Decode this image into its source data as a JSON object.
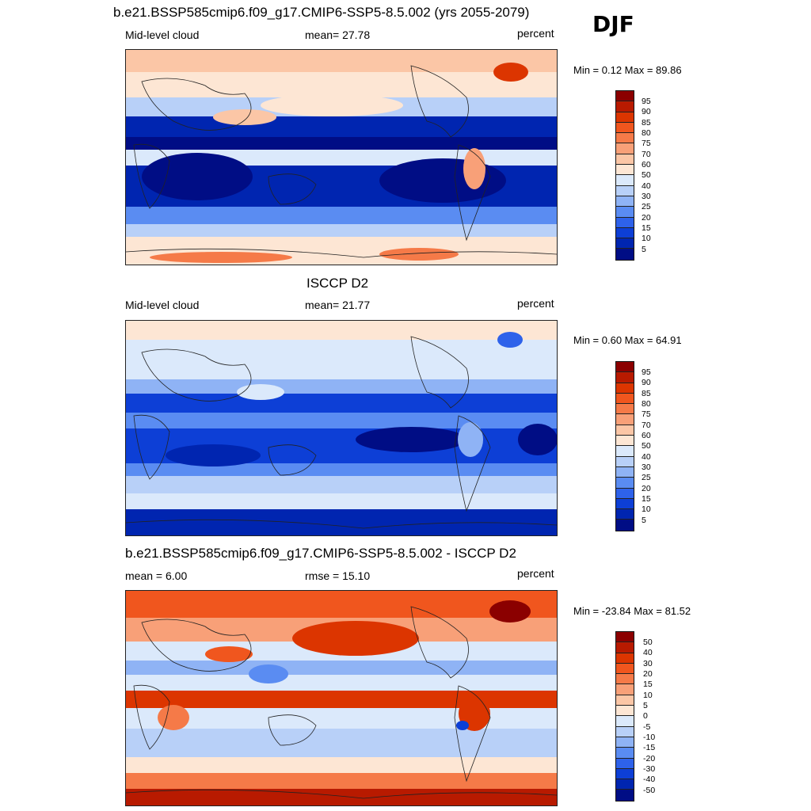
{
  "season": "DJF",
  "panels": [
    {
      "title": "b.e21.BSSP585cmip6.f09_g17.CMIP6-SSP5-8.5.002 (yrs 2055-2079)",
      "left": "Mid-level cloud",
      "center": "mean=  27.78",
      "right": "percent",
      "minmax": "Min =   0.12 Max =  89.86",
      "levels": [
        "95",
        "90",
        "85",
        "80",
        "75",
        "70",
        "60",
        "50",
        "40",
        "30",
        "25",
        "20",
        "15",
        "10",
        "5"
      ],
      "colors": [
        "#8b0000",
        "#b81a00",
        "#dc3500",
        "#f0561e",
        "#f57a48",
        "#f8a078",
        "#fbc6a6",
        "#fde6d4",
        "#dbe9fb",
        "#b8d0f8",
        "#8fb3f5",
        "#5a8cf2",
        "#2e62ea",
        "#0d3fd6",
        "#0025b0",
        "#000d85"
      ]
    },
    {
      "title": "ISCCP D2",
      "left": "Mid-level cloud",
      "center": "mean=  21.77",
      "right": "percent",
      "minmax": "Min =   0.60 Max =  64.91",
      "levels": [
        "95",
        "90",
        "85",
        "80",
        "75",
        "70",
        "60",
        "50",
        "40",
        "30",
        "25",
        "20",
        "15",
        "10",
        "5"
      ],
      "colors": [
        "#8b0000",
        "#b81a00",
        "#dc3500",
        "#f0561e",
        "#f57a48",
        "#f8a078",
        "#fbc6a6",
        "#fde6d4",
        "#dbe9fb",
        "#b8d0f8",
        "#8fb3f5",
        "#5a8cf2",
        "#2e62ea",
        "#0d3fd6",
        "#0025b0",
        "#000d85"
      ]
    },
    {
      "title": "b.e21.BSSP585cmip6.f09_g17.CMIP6-SSP5-8.5.002 - ISCCP D2",
      "left": "mean =   6.00",
      "center": "rmse =  15.10",
      "right": "percent",
      "minmax": "Min = -23.84 Max =  81.52",
      "levels": [
        "50",
        "40",
        "30",
        "20",
        "15",
        "10",
        "5",
        "0",
        "-5",
        "-10",
        "-15",
        "-20",
        "-30",
        "-40",
        "-50"
      ],
      "colors": [
        "#8b0000",
        "#b81a00",
        "#dc3500",
        "#f0561e",
        "#f57a48",
        "#f8a078",
        "#fbc6a6",
        "#fde6d4",
        "#dbe9fb",
        "#b8d0f8",
        "#8fb3f5",
        "#5a8cf2",
        "#2e62ea",
        "#0d3fd6",
        "#0025b0",
        "#000d85"
      ]
    }
  ]
}
